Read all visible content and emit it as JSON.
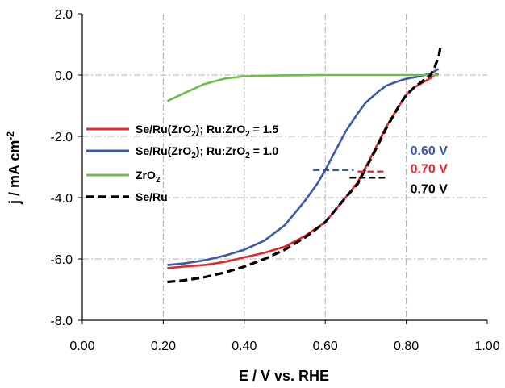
{
  "chart_data": {
    "type": "line",
    "xlabel": "E / V vs. RHE",
    "ylabel_main": "j / mA cm",
    "ylabel_sup": "-2",
    "xlim": [
      0.0,
      1.0
    ],
    "ylim": [
      -8.0,
      2.0
    ],
    "x_ticks": [
      "0.00",
      "0.20",
      "0.40",
      "0.60",
      "0.80",
      "1.00"
    ],
    "y_ticks": [
      "2.0",
      "0.0",
      "-2.0",
      "-4.0",
      "-6.0",
      "-8.0"
    ],
    "grid": true,
    "legend_placement": "left",
    "series": [
      {
        "name": "Se/Ru(ZrO2); Ru:ZrO2 = 1.5",
        "label_parts": [
          "Se/Ru(ZrO",
          "2",
          "); Ru:ZrO",
          "2",
          " = 1.5"
        ],
        "color": "#e8262b",
        "dash": "solid",
        "x": [
          0.21,
          0.25,
          0.3,
          0.35,
          0.4,
          0.45,
          0.5,
          0.55,
          0.6,
          0.65,
          0.68,
          0.7,
          0.72,
          0.75,
          0.78,
          0.8,
          0.82,
          0.84,
          0.86,
          0.87,
          0.88
        ],
        "y": [
          -6.3,
          -6.25,
          -6.2,
          -6.1,
          -5.95,
          -5.8,
          -5.6,
          -5.25,
          -4.8,
          -4.0,
          -3.5,
          -3.0,
          -2.5,
          -1.7,
          -1.05,
          -0.65,
          -0.4,
          -0.25,
          -0.1,
          0.0,
          0.05
        ]
      },
      {
        "name": "Se/Ru(ZrO2); Ru:ZrO2 = 1.0",
        "label_parts": [
          "Se/Ru(ZrO",
          "2",
          "); Ru:ZrO",
          "2",
          " = 1.0"
        ],
        "color": "#3a5aa8",
        "dash": "solid",
        "x": [
          0.21,
          0.25,
          0.3,
          0.35,
          0.4,
          0.45,
          0.5,
          0.55,
          0.58,
          0.6,
          0.62,
          0.65,
          0.68,
          0.7,
          0.73,
          0.75,
          0.78,
          0.8,
          0.83,
          0.86,
          0.88
        ],
        "y": [
          -6.2,
          -6.15,
          -6.05,
          -5.9,
          -5.7,
          -5.4,
          -4.9,
          -4.1,
          -3.55,
          -3.1,
          -2.6,
          -1.85,
          -1.25,
          -0.9,
          -0.55,
          -0.35,
          -0.2,
          -0.12,
          -0.05,
          0.05,
          0.2
        ]
      },
      {
        "name": "ZrO2",
        "label_parts": [
          "ZrO",
          "2",
          "",
          "",
          ""
        ],
        "color": "#6bbf45",
        "dash": "solid",
        "x": [
          0.21,
          0.25,
          0.3,
          0.35,
          0.4,
          0.45,
          0.5,
          0.6,
          0.7,
          0.8,
          0.88
        ],
        "y": [
          -0.85,
          -0.6,
          -0.3,
          -0.12,
          -0.04,
          -0.02,
          -0.01,
          0.0,
          0.0,
          0.0,
          0.0
        ]
      },
      {
        "name": "Se/Ru",
        "label_parts": [
          "Se/Ru",
          "",
          "",
          "",
          ""
        ],
        "color": "#000000",
        "dash": "dashed",
        "x": [
          0.21,
          0.25,
          0.3,
          0.35,
          0.4,
          0.45,
          0.5,
          0.55,
          0.6,
          0.65,
          0.68,
          0.7,
          0.72,
          0.75,
          0.78,
          0.8,
          0.82,
          0.84,
          0.86,
          0.87,
          0.88,
          0.885
        ],
        "y": [
          -6.75,
          -6.7,
          -6.6,
          -6.45,
          -6.25,
          -6.0,
          -5.7,
          -5.3,
          -4.8,
          -4.0,
          -3.55,
          -3.05,
          -2.55,
          -1.75,
          -1.05,
          -0.65,
          -0.4,
          -0.2,
          0.0,
          0.25,
          0.6,
          0.95
        ]
      }
    ],
    "annotations": [
      {
        "text": "0.60 V",
        "color": "#3a5aa8",
        "x": 0.81,
        "y": -2.6,
        "marker_x": [
          0.57,
          0.67
        ],
        "marker_y": -3.1
      },
      {
        "text": "0.70 V",
        "color": "#e8262b",
        "x": 0.81,
        "y": -3.2,
        "marker_x": [
          0.68,
          0.75
        ],
        "marker_y": -3.15
      },
      {
        "text": "0.70 V",
        "color": "#000000",
        "x": 0.81,
        "y": -3.85,
        "marker_x": [
          0.66,
          0.75
        ],
        "marker_y": -3.35
      }
    ]
  }
}
